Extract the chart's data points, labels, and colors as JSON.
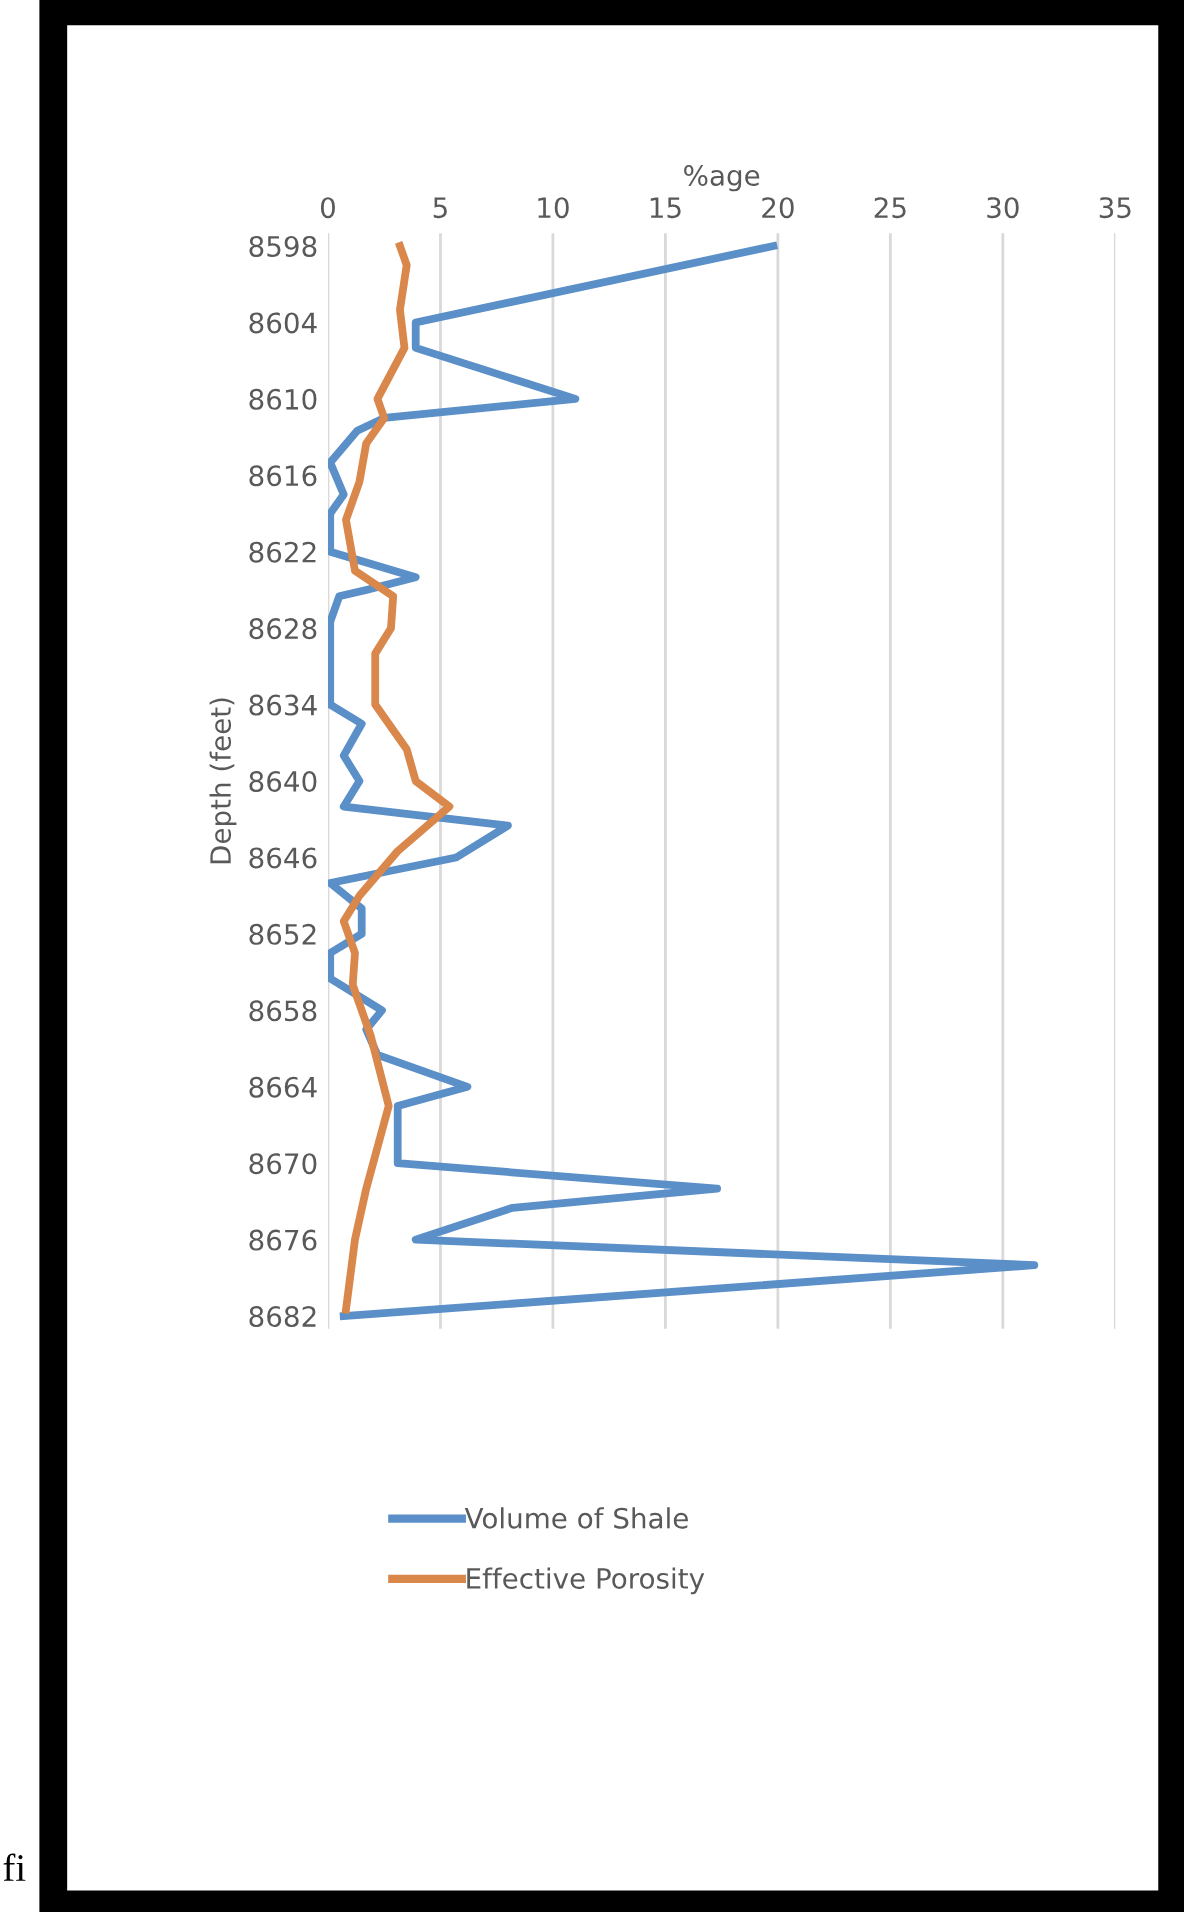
{
  "chart_data": {
    "type": "line",
    "xlabel": "%age",
    "ylabel": "Depth (feet)",
    "xlim": [
      0,
      35
    ],
    "xticks": [
      0,
      5,
      10,
      15,
      20,
      25,
      30,
      35
    ],
    "ylim": [
      8683,
      8597
    ],
    "yticks": [
      8598,
      8604,
      8610,
      8616,
      8622,
      8628,
      8634,
      8640,
      8646,
      8652,
      8658,
      8664,
      8670,
      8676,
      8682
    ],
    "grid": "x",
    "legend": "bottom",
    "line_style": "solid",
    "marker": "none",
    "annotations": [
      "fi"
    ],
    "series": [
      {
        "name": "Volume of Shale",
        "color": "#5b8fc8",
        "x": [
          19.8,
          3.9,
          3.9,
          11.0,
          2.5,
          1.3,
          0.1,
          0.7,
          0.1,
          0.1,
          3.9,
          1.7,
          0.5,
          0.1,
          0.1,
          1.5,
          0.7,
          1.4,
          0.7,
          8.0,
          5.7,
          0.1,
          1.5,
          1.5,
          0.1,
          0.1,
          2.4,
          1.7,
          2.2,
          6.2,
          3.1,
          3.1,
          17.3,
          8.2,
          3.9,
          31.4,
          0.7
        ],
        "values": [
          8598,
          8604,
          8606,
          8610,
          8611.5,
          8612.5,
          8615,
          8617.5,
          8619,
          8622,
          8624,
          8625,
          8625.5,
          8627.5,
          8634,
          8635.5,
          8638,
          8640,
          8642,
          8643.5,
          8646,
          8648,
          8650,
          8652,
          8653.5,
          8655.5,
          8658,
          8659.5,
          8661.5,
          8664,
          8665.5,
          8670,
          8672,
          8673.5,
          8676,
          8678,
          8682
        ]
      },
      {
        "name": "Effective Porosity",
        "color": "#d9874a",
        "x": [
          3.2,
          3.5,
          3.2,
          3.4,
          2.2,
          2.5,
          1.7,
          1.4,
          0.8,
          1.2,
          2.9,
          2.8,
          2.1,
          2.1,
          3.5,
          3.9,
          5.4,
          3.1,
          1.4,
          0.7,
          1.2,
          1.1,
          1.9,
          2.7,
          1.7,
          1.2,
          0.8
        ],
        "values": [
          8598,
          8599.5,
          8603,
          8606,
          8610,
          8611.5,
          8613.5,
          8616.5,
          8619.5,
          8623.5,
          8625.5,
          8628,
          8630,
          8634,
          8637.5,
          8640,
          8642,
          8645.5,
          8649,
          8651,
          8653.5,
          8656,
          8660,
          8665.5,
          8672,
          8676,
          8681.5
        ]
      }
    ]
  }
}
